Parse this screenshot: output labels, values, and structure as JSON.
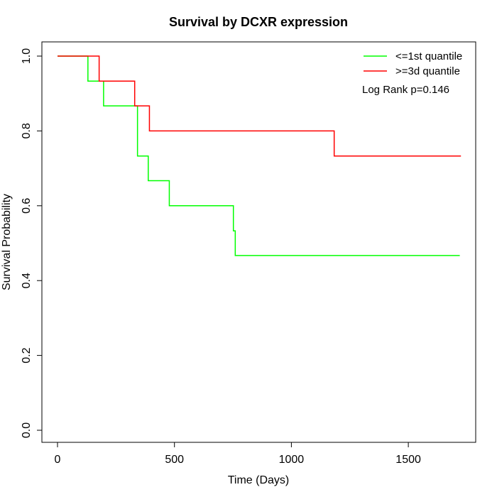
{
  "chart_data": {
    "type": "line",
    "title": "Survival by DCXR expression",
    "xlabel": "Time (Days)",
    "ylabel": "Survival Probability",
    "xlim": [
      0,
      1780
    ],
    "ylim": [
      0,
      1.0
    ],
    "xticks": [
      0,
      500,
      1000,
      1500
    ],
    "yticks": [
      0.0,
      0.2,
      0.4,
      0.6,
      0.8,
      1.0
    ],
    "xtick_labels": [
      "0",
      "500",
      "1000",
      "1500"
    ],
    "ytick_labels": [
      "0.0",
      "0.2",
      "0.4",
      "0.6",
      "0.8",
      "1.0"
    ],
    "step": true,
    "series": [
      {
        "name": "<=1st quantile",
        "color": "#00ff00",
        "x": [
          0,
          130,
          197,
          342,
          388,
          478,
          752,
          760,
          1720
        ],
        "y": [
          1.0,
          0.933,
          0.867,
          0.733,
          0.667,
          0.6,
          0.533,
          0.467,
          0.467
        ]
      },
      {
        "name": ">=3d quantile",
        "color": "#ff0000",
        "x": [
          0,
          178,
          330,
          393,
          1183,
          1725
        ],
        "y": [
          1.0,
          0.933,
          0.867,
          0.8,
          0.733,
          0.733
        ]
      }
    ],
    "legend_position": "top-right",
    "annotation": "Log Rank p=0.146"
  }
}
